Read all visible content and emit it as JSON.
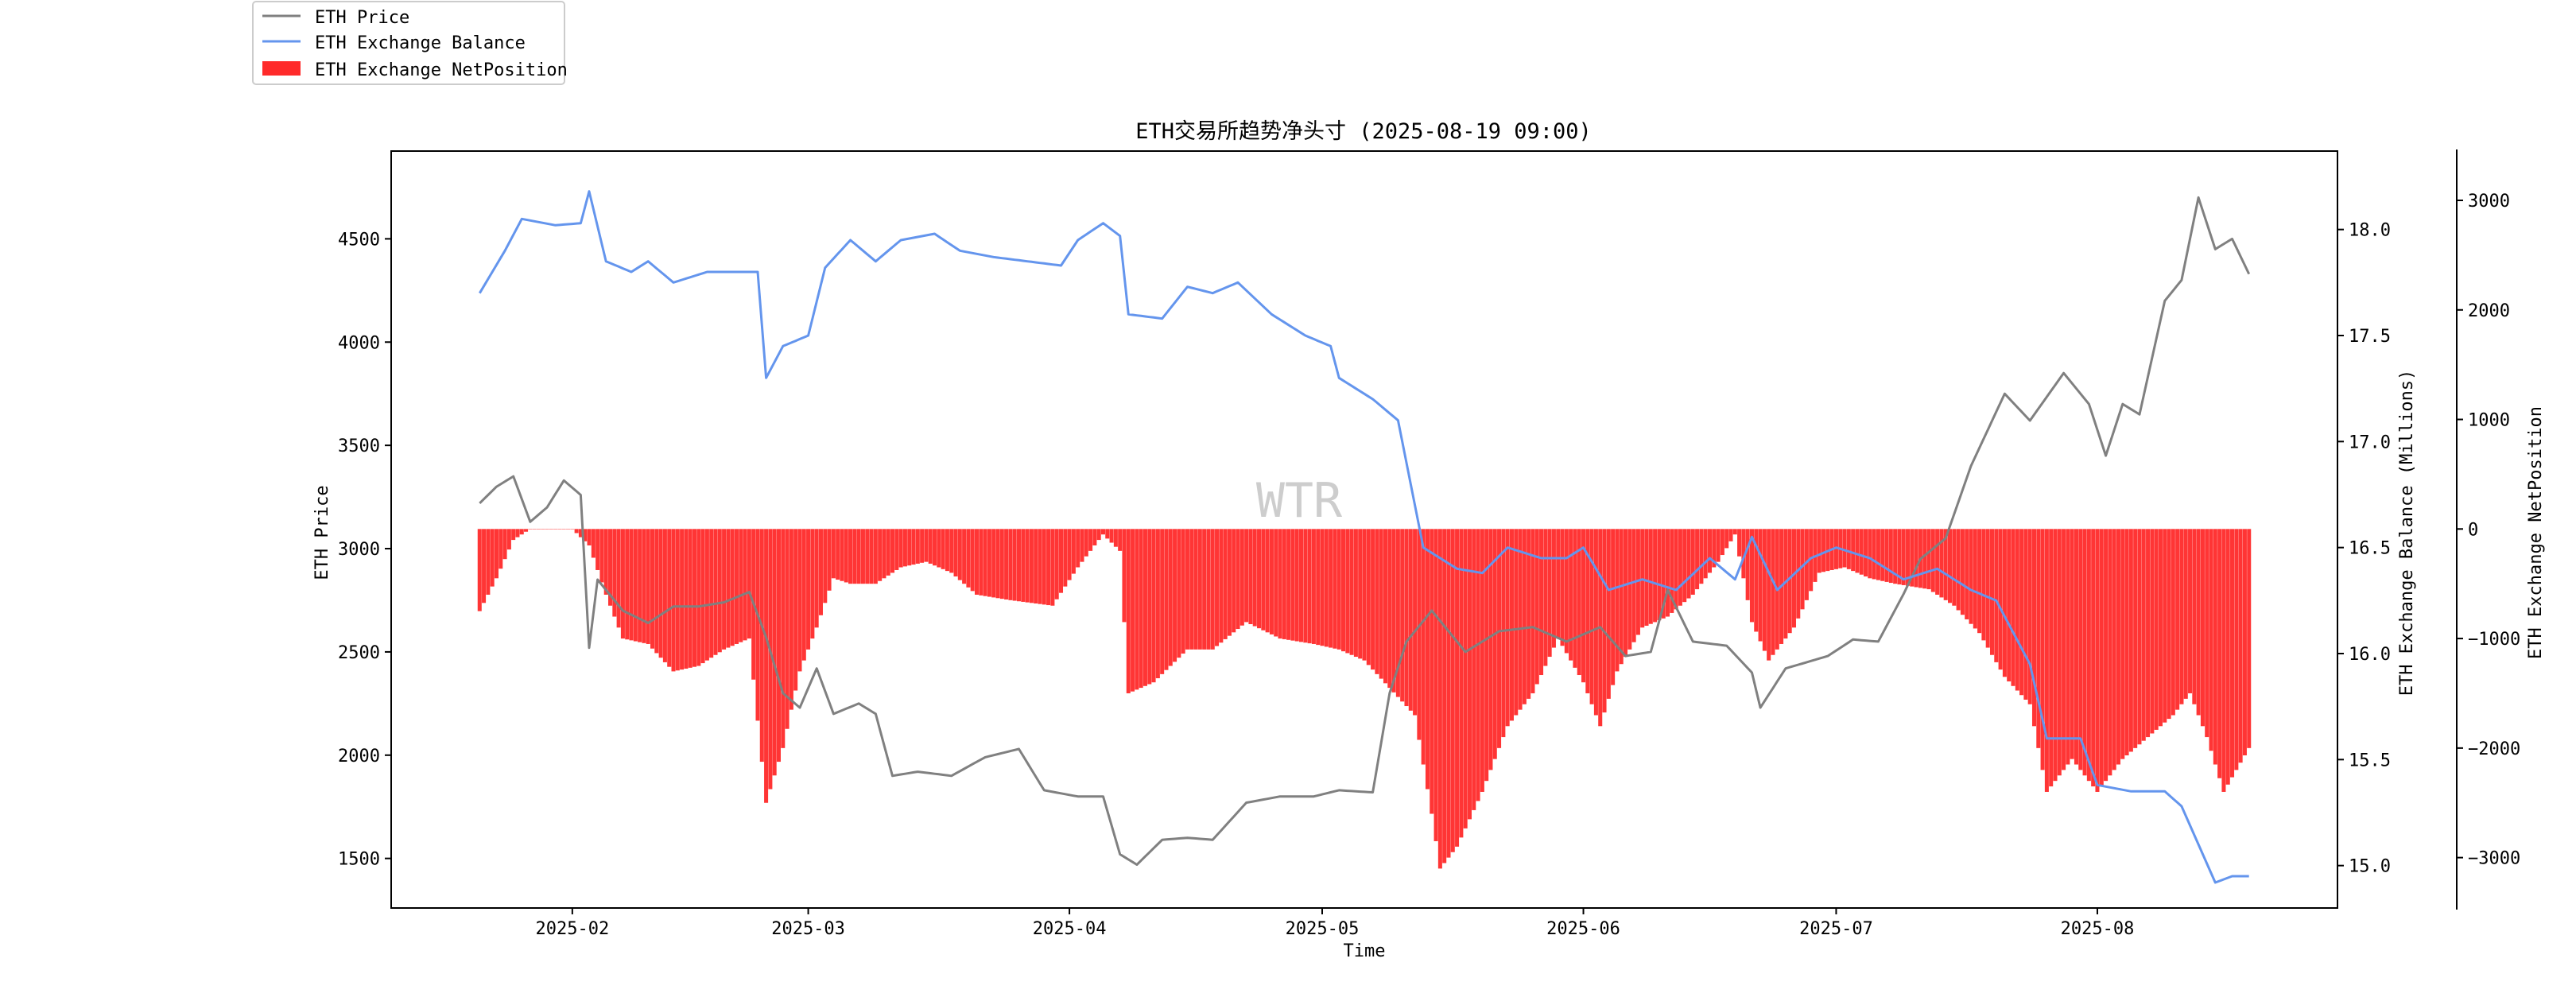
{
  "chart_data": {
    "type": "line",
    "title": "ETH交易所趋势净头寸 (2025-08-19 09:00)",
    "watermark": "WTR",
    "xlabel": "Time",
    "ylabel_left": "ETH Price",
    "ylabel_right": "ETH Exchange Balance (Millions)",
    "ylabel_right2": "ETH Exchange NetPosition",
    "x_range": [
      "2025-01-21",
      "2025-08-19"
    ],
    "x_ticks": [
      "2025-02",
      "2025-03",
      "2025-04",
      "2025-05",
      "2025-06",
      "2025-07",
      "2025-08"
    ],
    "x_tick_dates": [
      "2025-02-01",
      "2025-03-01",
      "2025-04-01",
      "2025-05-01",
      "2025-06-01",
      "2025-07-01",
      "2025-08-01"
    ],
    "y_left": {
      "ticks": [
        1500,
        2000,
        2500,
        3000,
        3500,
        4000,
        4500
      ],
      "range": [
        1260,
        4925
      ]
    },
    "y_right": {
      "ticks": [
        15.0,
        15.5,
        16.0,
        16.5,
        17.0,
        17.5,
        18.0
      ],
      "range": [
        14.8,
        18.37
      ]
    },
    "y_right2": {
      "ticks": [
        -3000,
        -2000,
        -1000,
        0,
        1000,
        2000,
        3000
      ],
      "range": [
        -3460,
        3450
      ]
    },
    "grid": false,
    "legend_position": "top-left outside",
    "legend": [
      {
        "label": "ETH Price",
        "color": "#808080",
        "kind": "line"
      },
      {
        "label": "ETH Exchange Balance",
        "color": "#6495ED",
        "kind": "line"
      },
      {
        "label": "ETH Exchange NetPosition",
        "color": "#FF2A2A",
        "kind": "patch"
      }
    ],
    "series": [
      {
        "name": "ETH Price",
        "axis": "left",
        "color": "#808080",
        "points": [
          [
            "2025-01-21",
            3220
          ],
          [
            "2025-01-23",
            3300
          ],
          [
            "2025-01-25",
            3350
          ],
          [
            "2025-01-27",
            3130
          ],
          [
            "2025-01-29",
            3200
          ],
          [
            "2025-01-31",
            3330
          ],
          [
            "2025-02-02",
            3260
          ],
          [
            "2025-02-03",
            2520
          ],
          [
            "2025-02-04",
            2850
          ],
          [
            "2025-02-07",
            2700
          ],
          [
            "2025-02-10",
            2640
          ],
          [
            "2025-02-13",
            2720
          ],
          [
            "2025-02-16",
            2720
          ],
          [
            "2025-02-19",
            2740
          ],
          [
            "2025-02-22",
            2790
          ],
          [
            "2025-02-24",
            2570
          ],
          [
            "2025-02-26",
            2300
          ],
          [
            "2025-02-28",
            2230
          ],
          [
            "2025-03-02",
            2420
          ],
          [
            "2025-03-04",
            2200
          ],
          [
            "2025-03-07",
            2250
          ],
          [
            "2025-03-09",
            2200
          ],
          [
            "2025-03-11",
            1900
          ],
          [
            "2025-03-14",
            1920
          ],
          [
            "2025-03-18",
            1900
          ],
          [
            "2025-03-22",
            1990
          ],
          [
            "2025-03-26",
            2030
          ],
          [
            "2025-03-29",
            1830
          ],
          [
            "2025-04-02",
            1800
          ],
          [
            "2025-04-05",
            1800
          ],
          [
            "2025-04-07",
            1520
          ],
          [
            "2025-04-09",
            1470
          ],
          [
            "2025-04-12",
            1590
          ],
          [
            "2025-04-15",
            1600
          ],
          [
            "2025-04-18",
            1590
          ],
          [
            "2025-04-22",
            1770
          ],
          [
            "2025-04-26",
            1800
          ],
          [
            "2025-04-30",
            1800
          ],
          [
            "2025-05-03",
            1830
          ],
          [
            "2025-05-07",
            1820
          ],
          [
            "2025-05-09",
            2300
          ],
          [
            "2025-05-11",
            2550
          ],
          [
            "2025-05-14",
            2700
          ],
          [
            "2025-05-18",
            2500
          ],
          [
            "2025-05-22",
            2600
          ],
          [
            "2025-05-26",
            2620
          ],
          [
            "2025-05-30",
            2550
          ],
          [
            "2025-06-03",
            2620
          ],
          [
            "2025-06-06",
            2480
          ],
          [
            "2025-06-09",
            2500
          ],
          [
            "2025-06-11",
            2800
          ],
          [
            "2025-06-14",
            2550
          ],
          [
            "2025-06-18",
            2530
          ],
          [
            "2025-06-21",
            2400
          ],
          [
            "2025-06-22",
            2230
          ],
          [
            "2025-06-25",
            2420
          ],
          [
            "2025-06-30",
            2480
          ],
          [
            "2025-07-03",
            2560
          ],
          [
            "2025-07-06",
            2550
          ],
          [
            "2025-07-09",
            2780
          ],
          [
            "2025-07-11",
            2950
          ],
          [
            "2025-07-14",
            3050
          ],
          [
            "2025-07-17",
            3400
          ],
          [
            "2025-07-21",
            3750
          ],
          [
            "2025-07-24",
            3620
          ],
          [
            "2025-07-28",
            3850
          ],
          [
            "2025-07-31",
            3700
          ],
          [
            "2025-08-02",
            3450
          ],
          [
            "2025-08-04",
            3700
          ],
          [
            "2025-08-06",
            3650
          ],
          [
            "2025-08-09",
            4200
          ],
          [
            "2025-08-11",
            4300
          ],
          [
            "2025-08-13",
            4700
          ],
          [
            "2025-08-15",
            4450
          ],
          [
            "2025-08-17",
            4500
          ],
          [
            "2025-08-19",
            4330
          ]
        ]
      },
      {
        "name": "ETH Exchange Balance",
        "axis": "right",
        "color": "#6495ED",
        "points": [
          [
            "2025-01-21",
            17.7
          ],
          [
            "2025-01-24",
            17.9
          ],
          [
            "2025-01-26",
            18.05
          ],
          [
            "2025-01-30",
            18.02
          ],
          [
            "2025-02-02",
            18.03
          ],
          [
            "2025-02-03",
            18.18
          ],
          [
            "2025-02-05",
            17.85
          ],
          [
            "2025-02-08",
            17.8
          ],
          [
            "2025-02-10",
            17.85
          ],
          [
            "2025-02-13",
            17.75
          ],
          [
            "2025-02-17",
            17.8
          ],
          [
            "2025-02-21",
            17.8
          ],
          [
            "2025-02-23",
            17.8
          ],
          [
            "2025-02-24",
            17.3
          ],
          [
            "2025-02-26",
            17.45
          ],
          [
            "2025-03-01",
            17.5
          ],
          [
            "2025-03-03",
            17.82
          ],
          [
            "2025-03-06",
            17.95
          ],
          [
            "2025-03-09",
            17.85
          ],
          [
            "2025-03-12",
            17.95
          ],
          [
            "2025-03-16",
            17.98
          ],
          [
            "2025-03-19",
            17.9
          ],
          [
            "2025-03-23",
            17.87
          ],
          [
            "2025-03-27",
            17.85
          ],
          [
            "2025-03-31",
            17.83
          ],
          [
            "2025-04-02",
            17.95
          ],
          [
            "2025-04-05",
            18.03
          ],
          [
            "2025-04-07",
            17.97
          ],
          [
            "2025-04-08",
            17.6
          ],
          [
            "2025-04-12",
            17.58
          ],
          [
            "2025-04-15",
            17.73
          ],
          [
            "2025-04-18",
            17.7
          ],
          [
            "2025-04-21",
            17.75
          ],
          [
            "2025-04-25",
            17.6
          ],
          [
            "2025-04-29",
            17.5
          ],
          [
            "2025-05-02",
            17.45
          ],
          [
            "2025-05-03",
            17.3
          ],
          [
            "2025-05-07",
            17.2
          ],
          [
            "2025-05-10",
            17.1
          ],
          [
            "2025-05-13",
            16.5
          ],
          [
            "2025-05-17",
            16.4
          ],
          [
            "2025-05-20",
            16.38
          ],
          [
            "2025-05-23",
            16.5
          ],
          [
            "2025-05-27",
            16.45
          ],
          [
            "2025-05-30",
            16.45
          ],
          [
            "2025-06-01",
            16.5
          ],
          [
            "2025-06-04",
            16.3
          ],
          [
            "2025-06-08",
            16.35
          ],
          [
            "2025-06-12",
            16.3
          ],
          [
            "2025-06-16",
            16.45
          ],
          [
            "2025-06-19",
            16.35
          ],
          [
            "2025-06-21",
            16.55
          ],
          [
            "2025-06-24",
            16.3
          ],
          [
            "2025-06-28",
            16.45
          ],
          [
            "2025-07-01",
            16.5
          ],
          [
            "2025-07-05",
            16.45
          ],
          [
            "2025-07-09",
            16.35
          ],
          [
            "2025-07-13",
            16.4
          ],
          [
            "2025-07-17",
            16.3
          ],
          [
            "2025-07-20",
            16.25
          ],
          [
            "2025-07-24",
            15.95
          ],
          [
            "2025-07-26",
            15.6
          ],
          [
            "2025-07-30",
            15.6
          ],
          [
            "2025-08-01",
            15.38
          ],
          [
            "2025-08-05",
            15.35
          ],
          [
            "2025-08-09",
            15.35
          ],
          [
            "2025-08-11",
            15.28
          ],
          [
            "2025-08-13",
            15.1
          ],
          [
            "2025-08-15",
            14.92
          ],
          [
            "2025-08-17",
            14.95
          ],
          [
            "2025-08-19",
            14.95
          ]
        ]
      },
      {
        "name": "ETH Exchange NetPosition",
        "axis": "right2",
        "color": "#FF2A2A",
        "style": "bars",
        "points": [
          [
            "2025-01-21",
            -750
          ],
          [
            "2025-01-23",
            -450
          ],
          [
            "2025-01-25",
            -100
          ],
          [
            "2025-01-27",
            0
          ],
          [
            "2025-02-01",
            0
          ],
          [
            "2025-02-03",
            -150
          ],
          [
            "2025-02-05",
            -600
          ],
          [
            "2025-02-07",
            -1000
          ],
          [
            "2025-02-10",
            -1050
          ],
          [
            "2025-02-13",
            -1300
          ],
          [
            "2025-02-16",
            -1250
          ],
          [
            "2025-02-19",
            -1100
          ],
          [
            "2025-02-22",
            -1000
          ],
          [
            "2025-02-24",
            -2500
          ],
          [
            "2025-02-26",
            -2000
          ],
          [
            "2025-02-28",
            -1300
          ],
          [
            "2025-03-02",
            -900
          ],
          [
            "2025-03-04",
            -450
          ],
          [
            "2025-03-06",
            -500
          ],
          [
            "2025-03-09",
            -500
          ],
          [
            "2025-03-12",
            -350
          ],
          [
            "2025-03-15",
            -300
          ],
          [
            "2025-03-18",
            -400
          ],
          [
            "2025-03-21",
            -600
          ],
          [
            "2025-03-25",
            -650
          ],
          [
            "2025-03-30",
            -700
          ],
          [
            "2025-04-02",
            -350
          ],
          [
            "2025-04-05",
            -50
          ],
          [
            "2025-04-07",
            -200
          ],
          [
            "2025-04-08",
            -1500
          ],
          [
            "2025-04-11",
            -1400
          ],
          [
            "2025-04-15",
            -1100
          ],
          [
            "2025-04-18",
            -1100
          ],
          [
            "2025-04-22",
            -850
          ],
          [
            "2025-04-26",
            -1000
          ],
          [
            "2025-04-30",
            -1050
          ],
          [
            "2025-05-03",
            -1100
          ],
          [
            "2025-05-06",
            -1200
          ],
          [
            "2025-05-09",
            -1450
          ],
          [
            "2025-05-12",
            -1700
          ],
          [
            "2025-05-14",
            -2600
          ],
          [
            "2025-05-15",
            -3100
          ],
          [
            "2025-05-17",
            -2900
          ],
          [
            "2025-05-20",
            -2400
          ],
          [
            "2025-05-23",
            -1800
          ],
          [
            "2025-05-26",
            -1500
          ],
          [
            "2025-05-29",
            -1000
          ],
          [
            "2025-06-01",
            -1400
          ],
          [
            "2025-06-03",
            -1800
          ],
          [
            "2025-06-05",
            -1300
          ],
          [
            "2025-06-08",
            -900
          ],
          [
            "2025-06-11",
            -800
          ],
          [
            "2025-06-14",
            -600
          ],
          [
            "2025-06-17",
            -300
          ],
          [
            "2025-06-19",
            -50
          ],
          [
            "2025-06-21",
            -850
          ],
          [
            "2025-06-23",
            -1200
          ],
          [
            "2025-06-26",
            -900
          ],
          [
            "2025-06-29",
            -400
          ],
          [
            "2025-07-02",
            -350
          ],
          [
            "2025-07-05",
            -450
          ],
          [
            "2025-07-08",
            -500
          ],
          [
            "2025-07-12",
            -550
          ],
          [
            "2025-07-15",
            -700
          ],
          [
            "2025-07-18",
            -950
          ],
          [
            "2025-07-21",
            -1350
          ],
          [
            "2025-07-24",
            -1600
          ],
          [
            "2025-07-26",
            -2400
          ],
          [
            "2025-07-29",
            -2100
          ],
          [
            "2025-08-01",
            -2400
          ],
          [
            "2025-08-04",
            -2100
          ],
          [
            "2025-08-07",
            -1900
          ],
          [
            "2025-08-10",
            -1700
          ],
          [
            "2025-08-12",
            -1500
          ],
          [
            "2025-08-14",
            -1900
          ],
          [
            "2025-08-16",
            -2400
          ],
          [
            "2025-08-19",
            -2000
          ]
        ]
      }
    ]
  }
}
